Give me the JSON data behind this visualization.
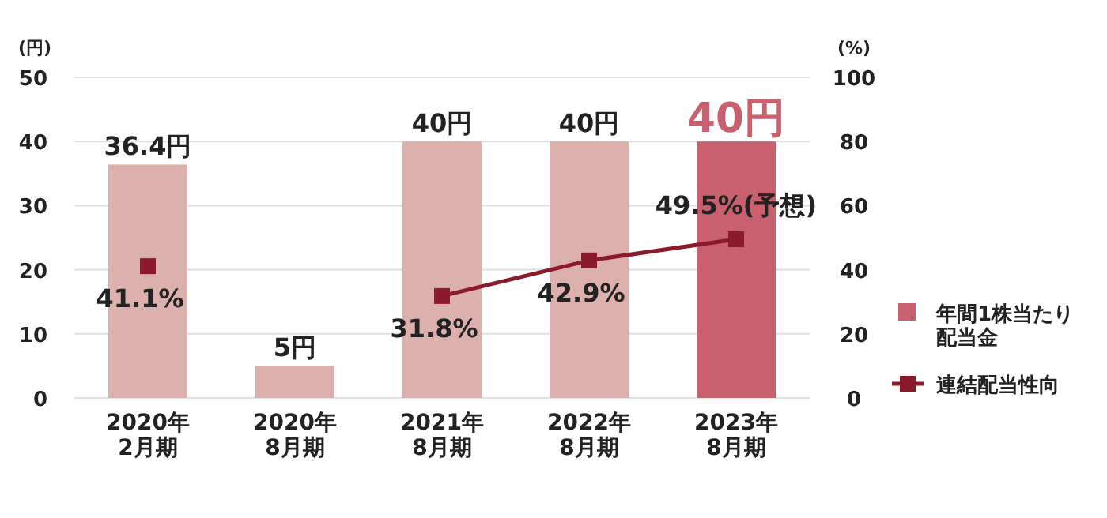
{
  "chart_data": {
    "type": "bar",
    "ylabel": "(円)",
    "y2label": "(%)",
    "categories": [
      "2020年\n2月期",
      "2020年\n8月期",
      "2021年\n8月期",
      "2022年\n8月期",
      "2023年\n8月期"
    ],
    "series": [
      {
        "name": "年間1株当たり配当金",
        "color": "#c8606e",
        "colors": [
          "#dbb0ad",
          "#dbb0ad",
          "#dbb0ad",
          "#dbb0ad",
          "#c8606e"
        ],
        "values": [
          36.4,
          5,
          40,
          40,
          40
        ],
        "value_labels": [
          "36.4円",
          "5円",
          "40円",
          "40円",
          "40円"
        ]
      },
      {
        "name": "連結配当性向",
        "type": "line",
        "axis": "y2",
        "color": "#8b1a2a",
        "values": [
          41.1,
          null,
          31.8,
          42.9,
          49.5
        ],
        "value_labels": [
          "41.1%",
          null,
          "31.8%",
          "42.9%",
          "49.5%(予想)"
        ]
      }
    ],
    "ylim": [
      0,
      50
    ],
    "yticks": [
      0,
      10,
      20,
      30,
      40,
      50
    ],
    "y2lim": [
      0,
      100
    ],
    "y2ticks": [
      0,
      20,
      40,
      60,
      80,
      100
    ],
    "grid": "y",
    "legend": "right",
    "marker": "square",
    "line_style": "solid"
  }
}
